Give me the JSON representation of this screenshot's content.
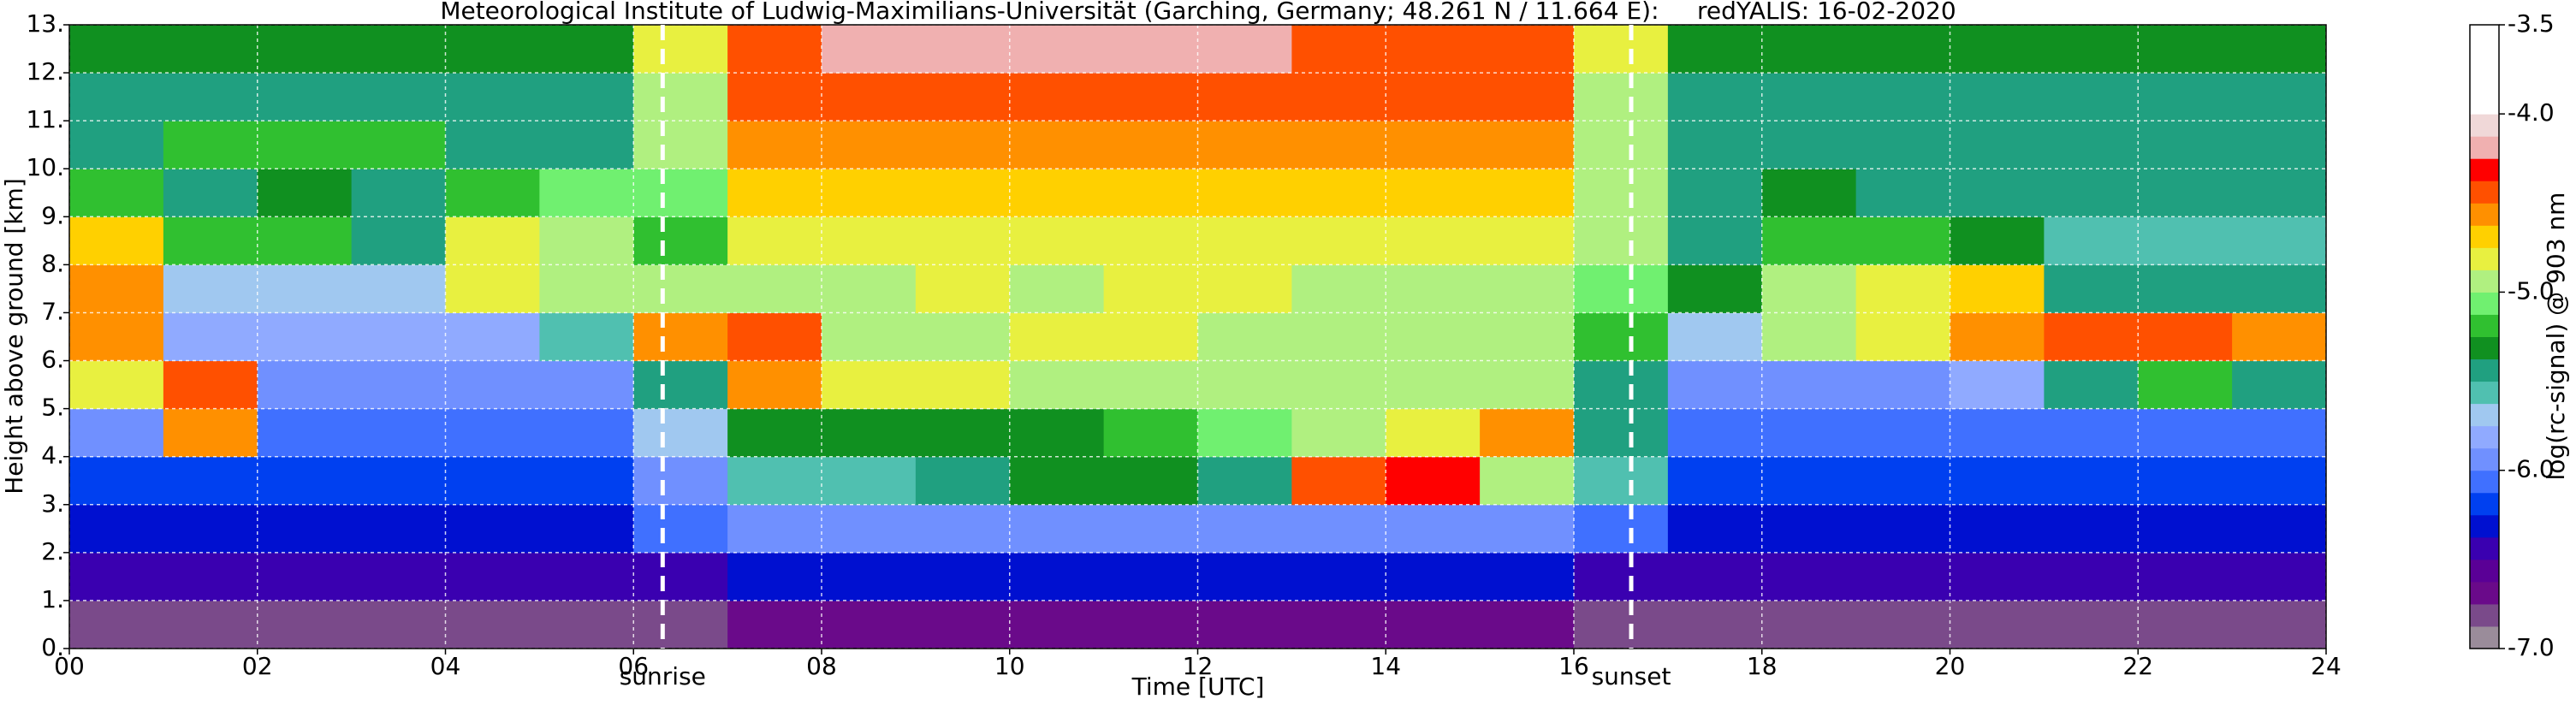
{
  "chart_data": {
    "type": "heatmap",
    "title": "Meteorological Institute of Ludwig-Maximilians-Universität (Garching, Germany; 48.261 N / 11.664 E):     redYALIS: 16-02-2020",
    "x_label": "Time [UTC]",
    "y_label": "Height above ground [km]",
    "colorbar_label": "log(rc-signal) @ 903 nm",
    "xlim": [
      0,
      24
    ],
    "ylim": [
      0,
      13
    ],
    "xticks": [
      {
        "value": 0,
        "label": "00"
      },
      {
        "value": 2,
        "label": "02"
      },
      {
        "value": 4,
        "label": "04"
      },
      {
        "value": 6,
        "label": "06"
      },
      {
        "value": 8,
        "label": "08"
      },
      10,
      12,
      14,
      16,
      18,
      20,
      22,
      24
    ],
    "yticks": [
      {
        "value": 0,
        "label": "0."
      },
      {
        "value": 1,
        "label": "1."
      },
      {
        "value": 2,
        "label": "2."
      },
      {
        "value": 3,
        "label": "3."
      },
      {
        "value": 4,
        "label": "4."
      },
      {
        "value": 5,
        "label": "5."
      },
      {
        "value": 6,
        "label": "6."
      },
      {
        "value": 7,
        "label": "7."
      },
      {
        "value": 8,
        "label": "8."
      },
      {
        "value": 9,
        "label": "9."
      },
      {
        "value": 10,
        "label": "10."
      },
      {
        "value": 11,
        "label": "11."
      },
      {
        "value": 12,
        "label": "12."
      },
      {
        "value": 13,
        "label": "13."
      }
    ],
    "grid": true,
    "zlim": [
      -7,
      -3.5
    ],
    "zticks": [
      {
        "value": -7,
        "label": "-7.0"
      },
      {
        "value": -6,
        "label": "-6.0"
      },
      {
        "value": -5,
        "label": "-5.0"
      },
      {
        "value": -4,
        "label": "-4.0"
      },
      -3.5
    ],
    "colorscale": [
      "#9a8c9a",
      "#7a4a8a",
      "#6a0a8a",
      "#5a0096",
      "#3a00b0",
      "#0010d0",
      "#0040f0",
      "#4070ff",
      "#7090ff",
      "#90aaff",
      "#a0c8f0",
      "#50c0b0",
      "#20a080",
      "#109020",
      "#30c030",
      "#70f070",
      "#b0f080",
      "#e8f040",
      "#ffd000",
      "#ff9000",
      "#ff5000",
      "#ff0000",
      "#f0b0b0",
      "#f0d8d8",
      "#ffffff",
      "#ffffff",
      "#ffffff",
      "#ffffff"
    ],
    "x_edges": [
      0,
      1,
      2,
      3,
      4,
      5,
      6,
      7,
      8,
      9,
      10,
      11,
      12,
      13,
      14,
      15,
      16,
      17,
      18,
      19,
      20,
      21,
      22,
      23,
      24
    ],
    "y_edges": [
      0,
      1,
      2,
      3,
      4,
      5,
      6,
      7,
      8,
      9,
      10,
      11,
      12,
      13
    ],
    "z": [
      [
        -6.8,
        -6.8,
        -6.8,
        -6.8,
        -6.8,
        -6.8,
        -6.8,
        -6.7,
        -6.7,
        -6.7,
        -6.7,
        -6.7,
        -6.7,
        -6.7,
        -6.7,
        -6.7,
        -6.8,
        -6.8,
        -6.8,
        -6.8,
        -6.8,
        -6.8,
        -6.8,
        -6.8
      ],
      [
        -6.5,
        -6.5,
        -6.5,
        -6.5,
        -6.5,
        -6.5,
        -6.4,
        -6.3,
        -6.3,
        -6.3,
        -6.3,
        -6.3,
        -6.3,
        -6.3,
        -6.3,
        -6.3,
        -6.4,
        -6.5,
        -6.5,
        -6.5,
        -6.5,
        -6.5,
        -6.5,
        -6.5
      ],
      [
        -6.3,
        -6.3,
        -6.3,
        -6.3,
        -6.3,
        -6.3,
        -6.1,
        -5.9,
        -5.9,
        -5.9,
        -5.9,
        -5.9,
        -5.9,
        -5.9,
        -5.9,
        -5.9,
        -6.1,
        -6.3,
        -6.3,
        -6.3,
        -6.3,
        -6.3,
        -6.3,
        -6.3
      ],
      [
        -6.2,
        -6.2,
        -6.2,
        -6.2,
        -6.2,
        -6.2,
        -5.9,
        -5.6,
        -5.6,
        -5.4,
        -5.3,
        -5.3,
        -5.4,
        -4.4,
        -4.3,
        -5.0,
        -5.6,
        -6.2,
        -6.2,
        -6.2,
        -6.2,
        -6.2,
        -6.2,
        -6.2
      ],
      [
        -6.0,
        -4.6,
        -6.1,
        -6.1,
        -6.1,
        -6.1,
        -5.7,
        -5.3,
        -5.3,
        -5.3,
        -5.3,
        -5.2,
        -5.1,
        -5.0,
        -4.8,
        -4.6,
        -5.5,
        -6.1,
        -6.1,
        -6.1,
        -6.1,
        -6.1,
        -6.1,
        -6.1
      ],
      [
        -4.8,
        -4.5,
        -6.0,
        -6.0,
        -6.0,
        -6.0,
        -5.4,
        -4.6,
        -4.8,
        -4.8,
        -5.0,
        -4.9,
        -5.0,
        -5.0,
        -5.0,
        -5.0,
        -5.4,
        -6.0,
        -6.0,
        -5.9,
        -5.8,
        -5.4,
        -5.2,
        -5.5
      ],
      [
        -4.6,
        -5.8,
        -5.8,
        -5.8,
        -5.8,
        -5.6,
        -4.6,
        -4.5,
        -5.0,
        -4.9,
        -4.8,
        -4.8,
        -4.9,
        -5.0,
        -5.0,
        -5.0,
        -5.2,
        -5.7,
        -5.0,
        -4.8,
        -4.6,
        -4.5,
        -4.5,
        -4.6
      ],
      [
        -4.6,
        -5.7,
        -5.7,
        -5.7,
        -4.8,
        -5.0,
        -5.0,
        -4.9,
        -4.9,
        -4.8,
        -4.9,
        -4.8,
        -4.8,
        -4.9,
        -4.9,
        -4.9,
        -5.1,
        -5.3,
        -4.9,
        -4.8,
        -4.7,
        -5.4,
        -5.5,
        -5.5
      ],
      [
        -4.7,
        -5.2,
        -5.2,
        -5.5,
        -4.8,
        -5.0,
        -5.2,
        -4.8,
        -4.8,
        -4.8,
        -4.8,
        -4.8,
        -4.8,
        -4.8,
        -4.8,
        -4.8,
        -4.9,
        -5.5,
        -5.2,
        -5.2,
        -5.3,
        -5.6,
        -5.6,
        -5.6
      ],
      [
        -5.2,
        -5.5,
        -5.3,
        -5.5,
        -5.2,
        -5.1,
        -5.1,
        -4.7,
        -4.7,
        -4.7,
        -4.7,
        -4.7,
        -4.7,
        -4.7,
        -4.7,
        -4.7,
        -4.9,
        -5.5,
        -5.3,
        -5.5,
        -5.5,
        -5.5,
        -5.5,
        -5.5
      ],
      [
        -5.4,
        -5.2,
        -5.2,
        -5.2,
        -5.4,
        -5.4,
        -5.0,
        -4.6,
        -4.6,
        -4.6,
        -4.6,
        -4.6,
        -4.6,
        -4.6,
        -4.6,
        -4.6,
        -5.0,
        -5.4,
        -5.4,
        -5.4,
        -5.4,
        -5.4,
        -5.4,
        -5.4
      ],
      [
        -5.4,
        -5.4,
        -5.4,
        -5.4,
        -5.4,
        -5.4,
        -4.9,
        -4.5,
        -4.5,
        -4.5,
        -4.5,
        -4.5,
        -4.5,
        -4.5,
        -4.5,
        -4.5,
        -4.9,
        -5.4,
        -5.4,
        -5.4,
        -5.4,
        -5.4,
        -5.4,
        -5.4
      ],
      [
        -5.3,
        -5.3,
        -5.3,
        -5.3,
        -5.3,
        -5.3,
        -4.8,
        -4.4,
        -4.2,
        -4.2,
        -4.2,
        -4.2,
        -4.2,
        -4.4,
        -4.4,
        -4.4,
        -4.8,
        -5.3,
        -5.3,
        -5.3,
        -5.3,
        -5.3,
        -5.3,
        -5.3
      ]
    ],
    "annotations": [
      {
        "text": "sunrise",
        "x": 6.31
      },
      {
        "text": "sunset",
        "x": 16.61
      }
    ]
  }
}
